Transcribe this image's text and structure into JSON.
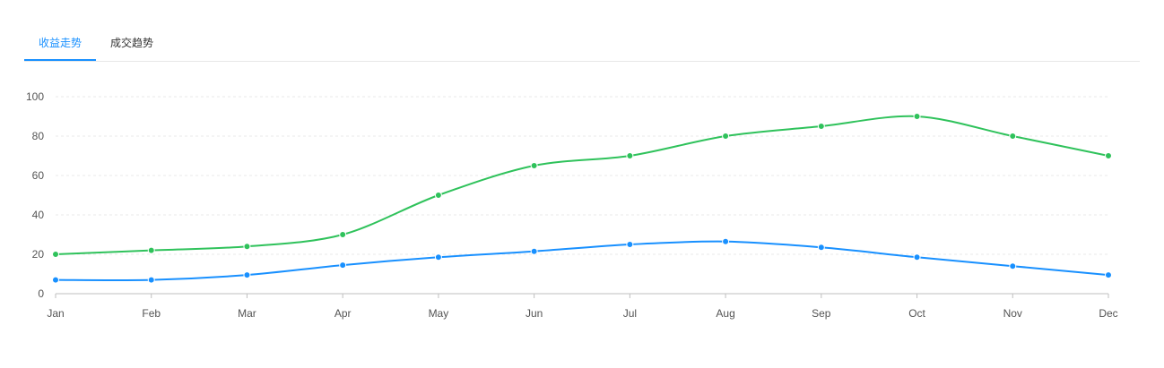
{
  "tabs": [
    {
      "label": "收益走势",
      "active": true
    },
    {
      "label": "成交趋势",
      "active": false
    }
  ],
  "colors": {
    "accent": "#1890ff",
    "grid": "#e8e8e8",
    "axis": "#bfbfbf"
  },
  "chart_data": {
    "type": "line",
    "categories": [
      "Jan",
      "Feb",
      "Mar",
      "Apr",
      "May",
      "Jun",
      "Jul",
      "Aug",
      "Sep",
      "Oct",
      "Nov",
      "Dec"
    ],
    "yticks": [
      0,
      20,
      40,
      60,
      80,
      100
    ],
    "ylim": [
      0,
      100
    ],
    "grid": true,
    "legend": "none",
    "series": [
      {
        "color": "#2fc25b",
        "values": [
          20,
          22,
          24,
          30,
          50,
          65,
          70,
          80,
          85,
          90,
          80,
          70
        ]
      },
      {
        "color": "#1890ff",
        "values": [
          7,
          7,
          9.5,
          14.5,
          18.5,
          21.5,
          25,
          26.5,
          23.5,
          18.5,
          14,
          9.5
        ]
      }
    ]
  }
}
